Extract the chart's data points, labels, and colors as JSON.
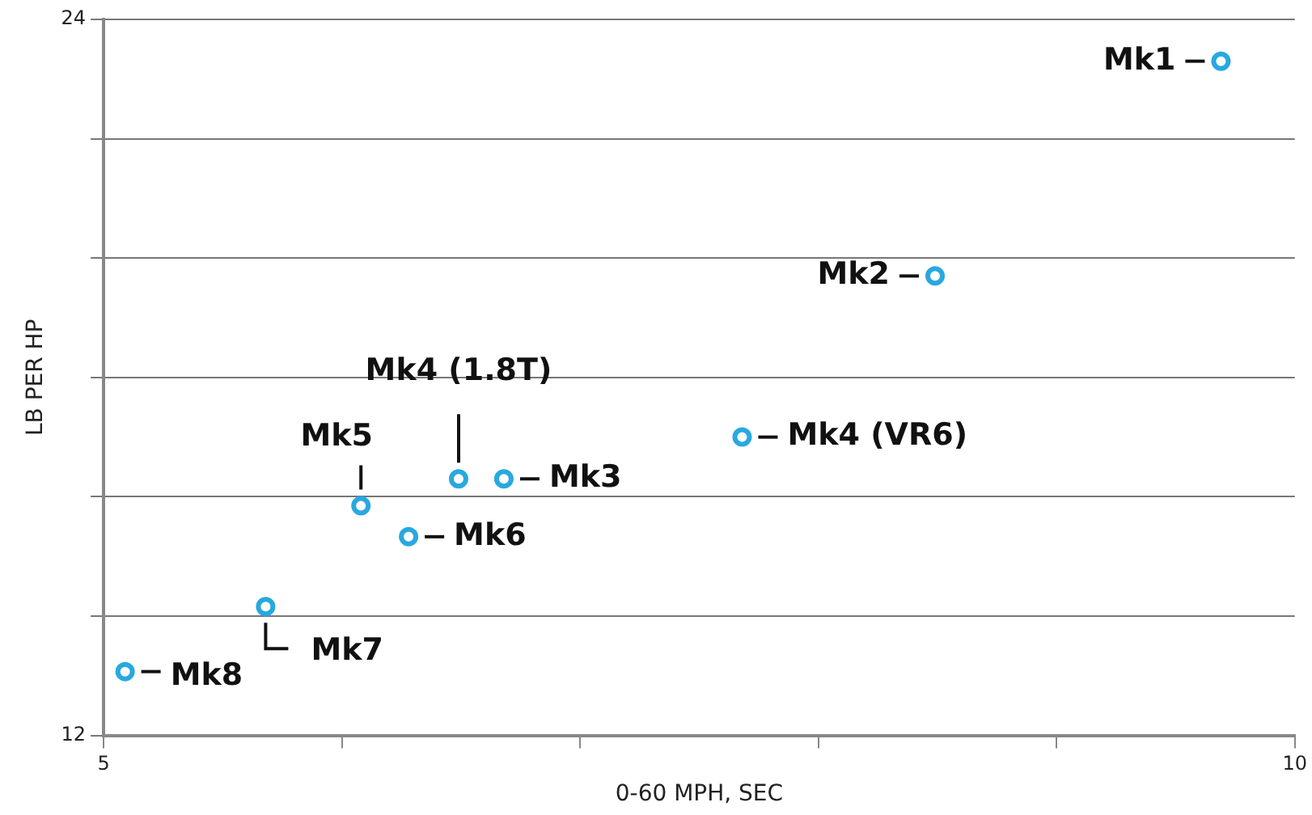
{
  "chart_data": {
    "type": "scatter",
    "xlabel": "0-60 MPH, SEC",
    "ylabel": "LB PER HP",
    "x": [
      9.69,
      8.49,
      7.68,
      6.68,
      6.49,
      6.08,
      6.28,
      5.68,
      5.09
    ],
    "series": [
      {
        "color": "#29a8e0",
        "values": [
          23.3,
          19.7,
          17.0,
          16.3,
          16.3,
          15.85,
          15.33,
          14.16,
          13.07
        ]
      }
    ],
    "xlim": [
      5,
      10
    ],
    "xticks": [
      5,
      {
        "value": 6,
        "label": null
      },
      {
        "value": 7,
        "label": null
      },
      {
        "value": 8,
        "label": null
      },
      {
        "value": 9,
        "label": null
      },
      10
    ],
    "ylim": [
      12,
      24
    ],
    "yticks": [
      12,
      {
        "value": 14,
        "label": null
      },
      {
        "value": 16,
        "label": null
      },
      {
        "value": 18,
        "label": null
      },
      {
        "value": 20,
        "label": null
      },
      {
        "value": 22,
        "label": null
      },
      24
    ],
    "grid": "y",
    "marker": "circle",
    "legend": false,
    "annotations": [
      {
        "text": "Mk1",
        "x": 9.69,
        "y": 23.3
      },
      {
        "text": "Mk2",
        "x": 8.49,
        "y": 19.7
      },
      {
        "text": "Mk4 (VR6)",
        "x": 7.68,
        "y": 17.0
      },
      {
        "text": "Mk3",
        "x": 6.68,
        "y": 16.3
      },
      {
        "text": "Mk4 (1.8T)",
        "x": 6.49,
        "y": 16.3
      },
      {
        "text": "Mk5",
        "x": 6.08,
        "y": 15.85
      },
      {
        "text": "Mk6",
        "x": 6.28,
        "y": 15.33
      },
      {
        "text": "Mk7",
        "x": 5.68,
        "y": 14.16
      },
      {
        "text": "Mk8",
        "x": 5.09,
        "y": 13.07
      }
    ]
  }
}
